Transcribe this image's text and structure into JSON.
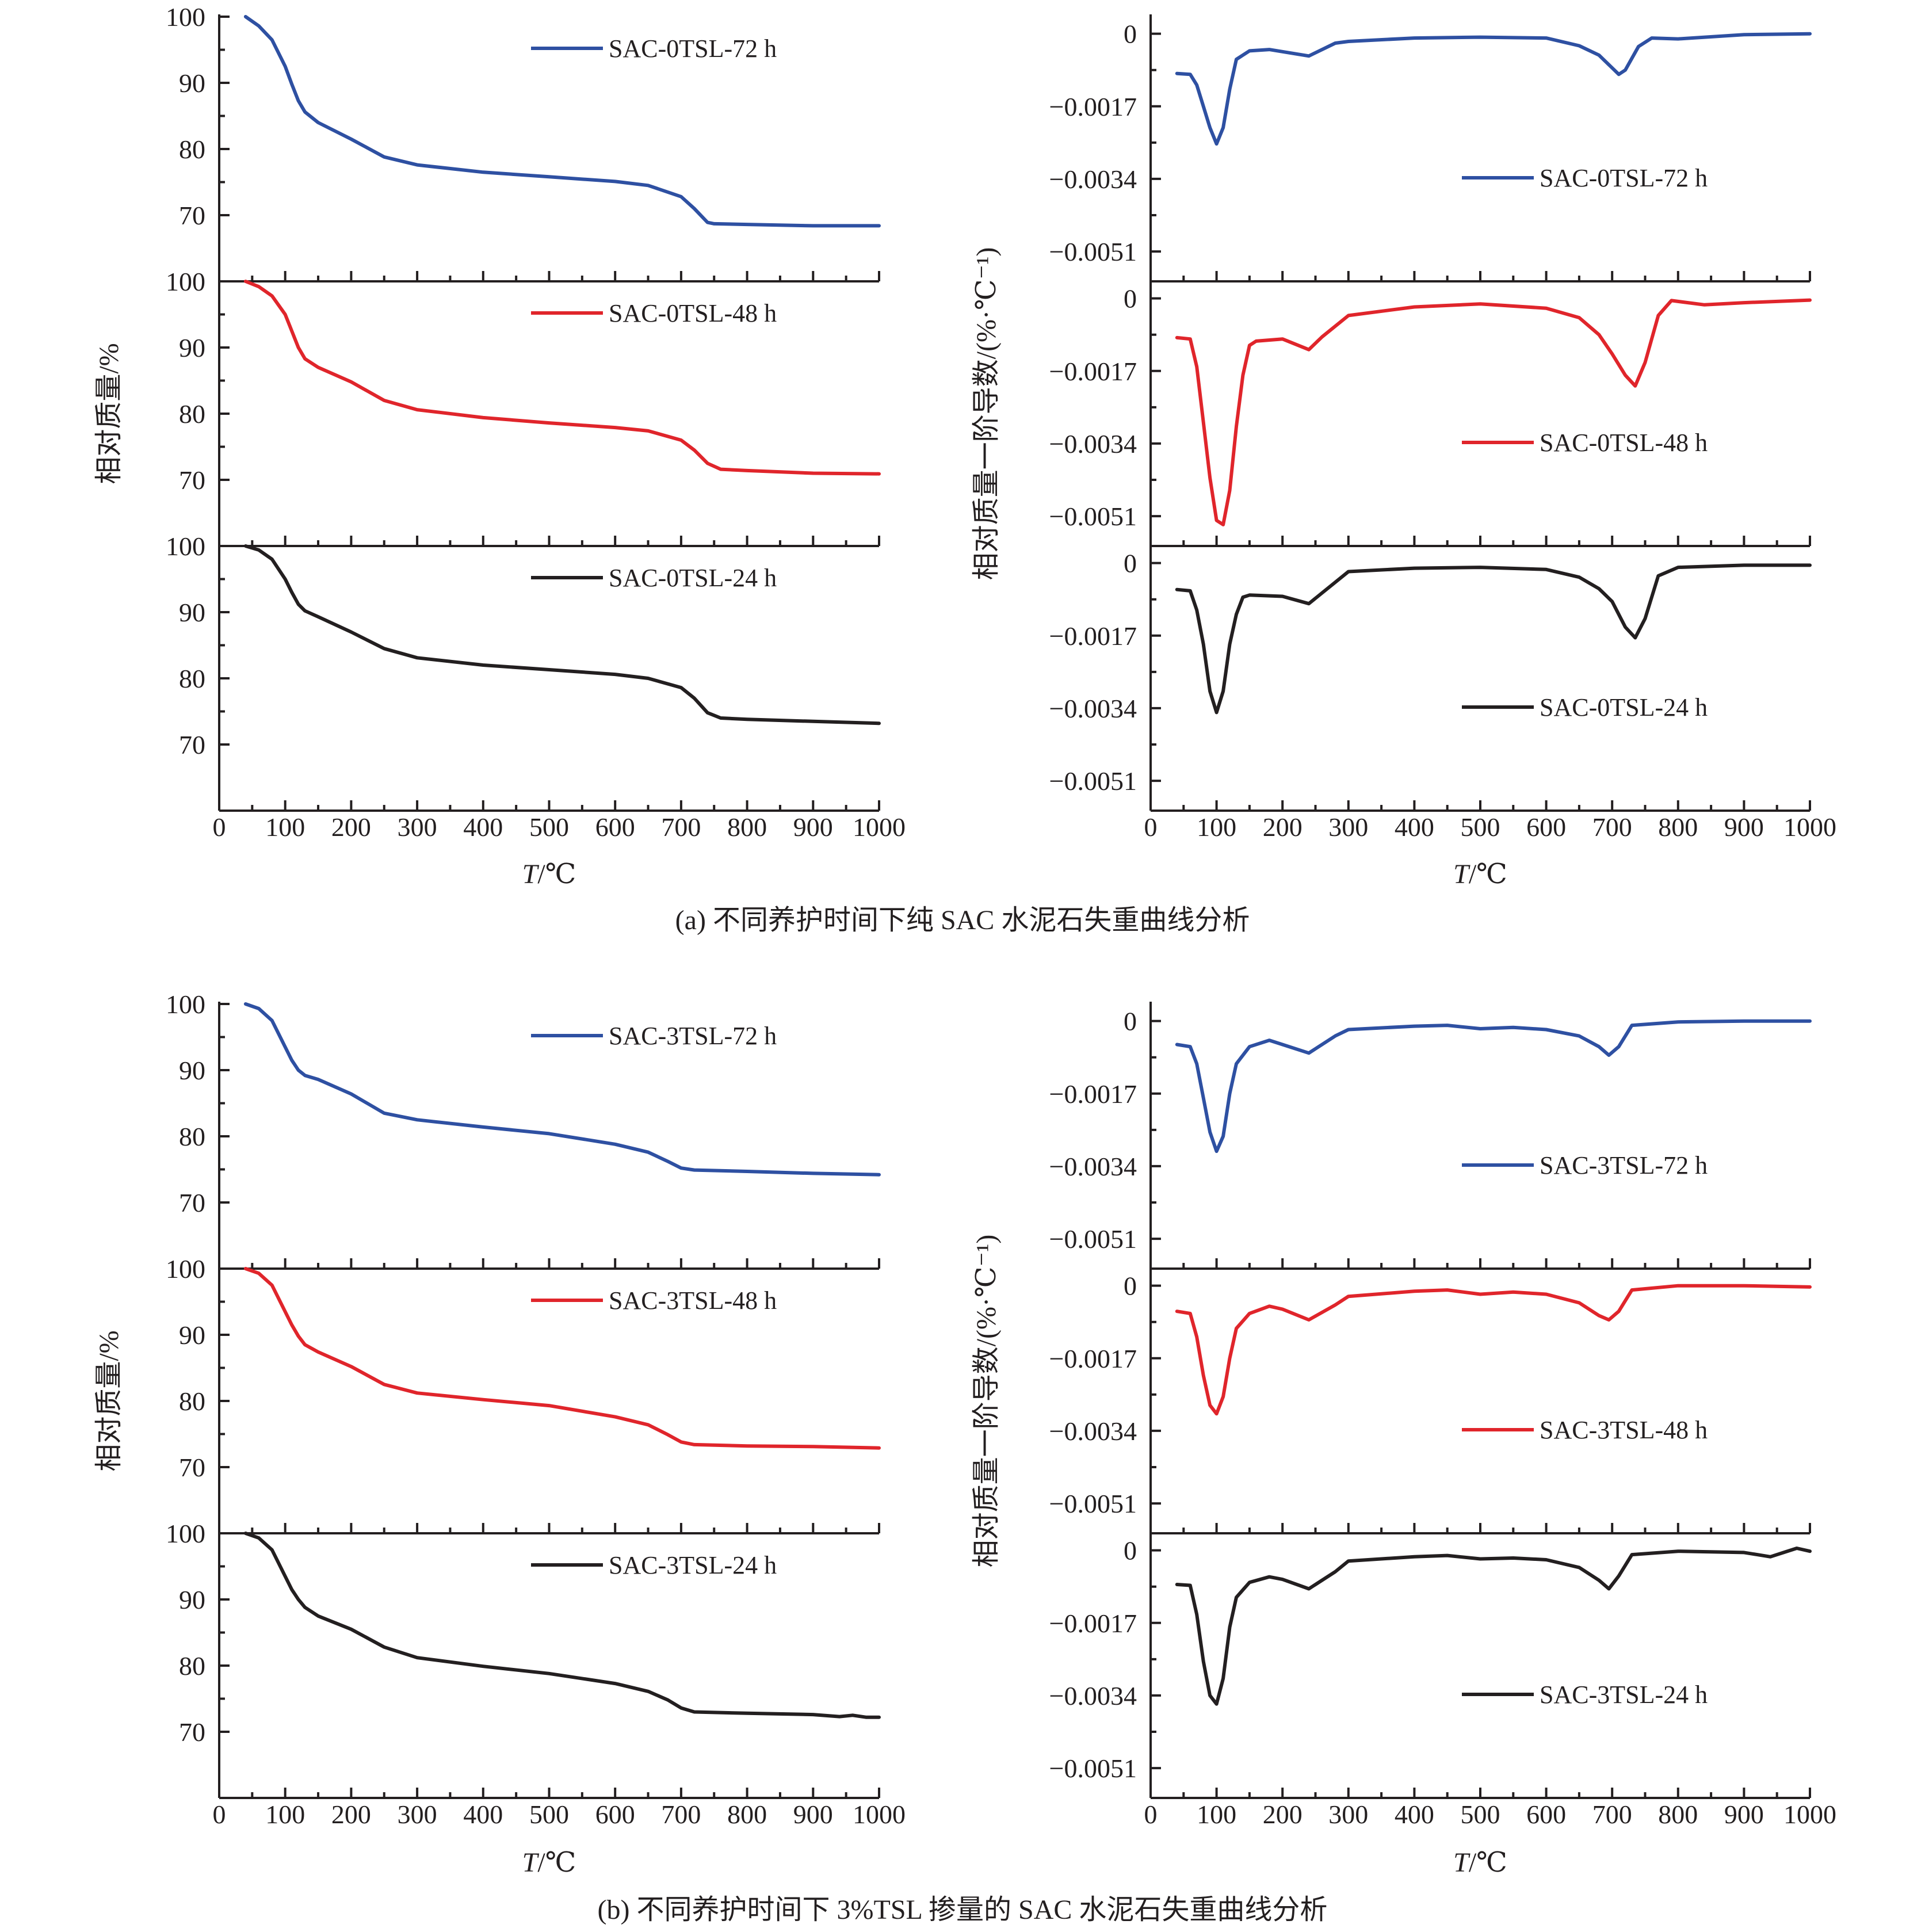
{
  "figure": {
    "caption_a": "(a) 不同养护时间下纯 SAC 水泥石失重曲线分析",
    "caption_b": "(b) 不同养护时间下 3%TSL 掺量的 SAC 水泥石失重曲线分析"
  },
  "chart_data": [
    {
      "type": "line",
      "group": "a",
      "panel": "TG",
      "xlabel_italic": "T",
      "xlabel_unit": "/℃",
      "ylabel": "相对质量/%",
      "xlim": [
        0,
        1000
      ],
      "xticks": [
        "0",
        "100",
        "200",
        "300",
        "400",
        "500",
        "600",
        "700",
        "800",
        "900",
        "1000"
      ],
      "ylim": [
        60,
        100
      ],
      "yticks": [
        70,
        80,
        90,
        100
      ],
      "ytick_labels": [
        "70",
        "80",
        "90",
        "100"
      ],
      "subplots": [
        {
          "name": "SAC-0TSL-72 h",
          "color": "#2e50a2",
          "legend": "top-right",
          "x": [
            40,
            60,
            80,
            100,
            110,
            120,
            130,
            150,
            200,
            250,
            300,
            400,
            500,
            600,
            650,
            700,
            720,
            740,
            750,
            800,
            900,
            1000
          ],
          "y": [
            100,
            98.6,
            96.5,
            92.5,
            89.8,
            87.3,
            85.6,
            84,
            81.5,
            78.8,
            77.6,
            76.5,
            75.8,
            75.1,
            74.5,
            72.8,
            71,
            68.9,
            68.7,
            68.6,
            68.4,
            68.4
          ]
        },
        {
          "name": "SAC-0TSL-48 h",
          "color": "#e0252b",
          "legend": "top-right",
          "x": [
            40,
            60,
            80,
            100,
            110,
            120,
            130,
            150,
            200,
            250,
            300,
            400,
            500,
            600,
            650,
            700,
            720,
            740,
            760,
            800,
            900,
            1000
          ],
          "y": [
            100,
            99.2,
            97.8,
            95,
            92.5,
            90,
            88.3,
            87,
            84.8,
            82,
            80.6,
            79.4,
            78.6,
            77.9,
            77.4,
            76,
            74.5,
            72.5,
            71.6,
            71.4,
            71,
            70.9
          ]
        },
        {
          "name": "SAC-0TSL-24 h",
          "color": "#231f20",
          "legend": "top-right",
          "x": [
            40,
            60,
            80,
            100,
            110,
            120,
            130,
            150,
            200,
            250,
            300,
            400,
            500,
            600,
            650,
            700,
            720,
            740,
            760,
            800,
            900,
            1000
          ],
          "y": [
            100,
            99.4,
            98,
            95,
            93,
            91.2,
            90.2,
            89.3,
            87,
            84.5,
            83.1,
            82,
            81.3,
            80.6,
            80,
            78.6,
            77,
            74.8,
            74,
            73.8,
            73.5,
            73.2
          ]
        }
      ]
    },
    {
      "type": "line",
      "group": "a",
      "panel": "DTG",
      "xlabel_italic": "T",
      "xlabel_unit": "/℃",
      "ylabel": "相对质量一阶导数/(%·℃⁻¹)",
      "xlim": [
        0,
        1000
      ],
      "xticks": [
        "0",
        "100",
        "200",
        "300",
        "400",
        "500",
        "600",
        "700",
        "800",
        "900",
        "1000"
      ],
      "ylim": [
        -0.0058,
        0.0004
      ],
      "yticks": [
        0,
        -0.0017,
        -0.0034,
        -0.0051
      ],
      "ytick_labels": [
        "0",
        "−0.0017",
        "−0.0034",
        "−0.0051"
      ],
      "subplots": [
        {
          "name": "SAC-0TSL-72 h",
          "color": "#2e50a2",
          "legend": "bottom-right",
          "x": [
            40,
            60,
            70,
            80,
            90,
            100,
            110,
            120,
            130,
            150,
            180,
            200,
            240,
            280,
            300,
            400,
            500,
            600,
            650,
            680,
            700,
            710,
            720,
            740,
            760,
            800,
            900,
            1000
          ],
          "y": [
            -0.00093,
            -0.00095,
            -0.0012,
            -0.0017,
            -0.0022,
            -0.00258,
            -0.0022,
            -0.0013,
            -0.0006,
            -0.0004,
            -0.00037,
            -0.00042,
            -0.00052,
            -0.00022,
            -0.00018,
            -0.0001,
            -8e-05,
            -0.0001,
            -0.00028,
            -0.0005,
            -0.0008,
            -0.00095,
            -0.00085,
            -0.0003,
            -0.0001,
            -0.00012,
            -2e-05,
            0
          ]
        },
        {
          "name": "SAC-0TSL-48 h",
          "color": "#e0252b",
          "legend": "bottom-right",
          "x": [
            40,
            60,
            70,
            80,
            90,
            100,
            110,
            120,
            130,
            140,
            150,
            160,
            200,
            240,
            260,
            300,
            400,
            500,
            600,
            650,
            680,
            700,
            720,
            735,
            750,
            770,
            790,
            840,
            900,
            1000
          ],
          "y": [
            -0.00092,
            -0.00095,
            -0.0016,
            -0.0029,
            -0.0042,
            -0.0052,
            -0.0053,
            -0.0045,
            -0.003,
            -0.0018,
            -0.0011,
            -0.001,
            -0.00095,
            -0.0012,
            -0.0009,
            -0.0004,
            -0.0002,
            -0.00013,
            -0.00023,
            -0.00045,
            -0.00085,
            -0.0013,
            -0.0018,
            -0.00205,
            -0.0015,
            -0.0004,
            -5e-05,
            -0.00015,
            -0.0001,
            -4e-05
          ]
        },
        {
          "name": "SAC-0TSL-24 h",
          "color": "#231f20",
          "legend": "bottom-right",
          "x": [
            40,
            60,
            70,
            80,
            90,
            100,
            110,
            120,
            130,
            140,
            150,
            200,
            240,
            260,
            300,
            400,
            500,
            600,
            650,
            680,
            700,
            720,
            735,
            750,
            770,
            800,
            840,
            900,
            1000
          ],
          "y": [
            -0.00062,
            -0.00065,
            -0.0011,
            -0.0019,
            -0.003,
            -0.0035,
            -0.003,
            -0.0019,
            -0.0012,
            -0.0008,
            -0.00075,
            -0.00078,
            -0.00095,
            -0.0007,
            -0.0002,
            -0.00012,
            -0.0001,
            -0.00015,
            -0.00033,
            -0.0006,
            -0.0009,
            -0.0015,
            -0.00175,
            -0.0013,
            -0.0003,
            -0.0001,
            -8e-05,
            -5e-05,
            -5e-05
          ]
        }
      ]
    },
    {
      "type": "line",
      "group": "b",
      "panel": "TG",
      "xlabel_italic": "T",
      "xlabel_unit": "/℃",
      "ylabel": "相对质量/%",
      "xlim": [
        0,
        1000
      ],
      "xticks": [
        "0",
        "100",
        "200",
        "300",
        "400",
        "500",
        "600",
        "700",
        "800",
        "900",
        "1000"
      ],
      "ylim": [
        60,
        100
      ],
      "yticks": [
        70,
        80,
        90,
        100
      ],
      "ytick_labels": [
        "70",
        "80",
        "90",
        "100"
      ],
      "subplots": [
        {
          "name": "SAC-3TSL-72 h",
          "color": "#2e50a2",
          "legend": "top-right",
          "x": [
            40,
            60,
            80,
            100,
            110,
            120,
            130,
            150,
            200,
            250,
            300,
            400,
            500,
            600,
            650,
            680,
            700,
            720,
            800,
            900,
            1000
          ],
          "y": [
            100,
            99.3,
            97.5,
            93.5,
            91.5,
            90,
            89.2,
            88.6,
            86.4,
            83.5,
            82.5,
            81.4,
            80.4,
            78.8,
            77.6,
            76.2,
            75.2,
            74.9,
            74.7,
            74.4,
            74.2
          ]
        },
        {
          "name": "SAC-3TSL-48 h",
          "color": "#e0252b",
          "legend": "top-right",
          "x": [
            40,
            60,
            80,
            100,
            110,
            120,
            130,
            150,
            200,
            250,
            300,
            400,
            500,
            600,
            650,
            680,
            700,
            720,
            800,
            900,
            1000
          ],
          "y": [
            100,
            99.3,
            97.5,
            93.5,
            91.5,
            89.8,
            88.5,
            87.4,
            85.2,
            82.5,
            81.2,
            80.2,
            79.3,
            77.6,
            76.4,
            74.9,
            73.8,
            73.4,
            73.2,
            73.1,
            72.9
          ]
        },
        {
          "name": "SAC-3TSL-24 h",
          "color": "#231f20",
          "legend": "top-right",
          "x": [
            40,
            60,
            80,
            100,
            110,
            120,
            130,
            150,
            200,
            250,
            300,
            400,
            500,
            600,
            650,
            680,
            700,
            720,
            800,
            900,
            940,
            960,
            980,
            1000
          ],
          "y": [
            100,
            99.3,
            97.5,
            93.5,
            91.5,
            90,
            88.8,
            87.5,
            85.5,
            82.8,
            81.2,
            79.9,
            78.8,
            77.3,
            76.1,
            74.8,
            73.6,
            73,
            72.8,
            72.6,
            72.3,
            72.5,
            72.2,
            72.2
          ]
        }
      ]
    },
    {
      "type": "line",
      "group": "b",
      "panel": "DTG",
      "xlabel_italic": "T",
      "xlabel_unit": "/℃",
      "ylabel": "相对质量一阶导数/(%·℃⁻¹)",
      "xlim": [
        0,
        1000
      ],
      "xticks": [
        "0",
        "100",
        "200",
        "300",
        "400",
        "500",
        "600",
        "700",
        "800",
        "900",
        "1000"
      ],
      "ylim": [
        -0.0058,
        0.0004
      ],
      "yticks": [
        0,
        -0.0017,
        -0.0034,
        -0.0051
      ],
      "ytick_labels": [
        "0",
        "−0.0017",
        "−0.0034",
        "−0.0051"
      ],
      "subplots": [
        {
          "name": "SAC-3TSL-72 h",
          "color": "#2e50a2",
          "legend": "bottom-right",
          "x": [
            40,
            60,
            70,
            80,
            90,
            100,
            110,
            120,
            130,
            150,
            180,
            200,
            240,
            280,
            300,
            400,
            450,
            500,
            550,
            600,
            650,
            680,
            695,
            710,
            730,
            800,
            900,
            1000
          ],
          "y": [
            -0.00055,
            -0.0006,
            -0.001,
            -0.0018,
            -0.0026,
            -0.00305,
            -0.0027,
            -0.0017,
            -0.001,
            -0.0006,
            -0.00045,
            -0.00055,
            -0.00075,
            -0.00035,
            -0.0002,
            -0.00012,
            -0.0001,
            -0.00018,
            -0.00015,
            -0.0002,
            -0.00035,
            -0.0006,
            -0.0008,
            -0.0006,
            -0.0001,
            -2e-05,
            0,
            0
          ]
        },
        {
          "name": "SAC-3TSL-48 h",
          "color": "#e0252b",
          "legend": "bottom-right",
          "x": [
            40,
            60,
            70,
            80,
            90,
            100,
            110,
            120,
            130,
            150,
            180,
            200,
            240,
            280,
            300,
            400,
            450,
            500,
            550,
            600,
            650,
            680,
            695,
            710,
            730,
            800,
            900,
            1000
          ],
          "y": [
            -0.0006,
            -0.00065,
            -0.0012,
            -0.0021,
            -0.0028,
            -0.003,
            -0.0026,
            -0.0017,
            -0.001,
            -0.00065,
            -0.00048,
            -0.00055,
            -0.0008,
            -0.00045,
            -0.00025,
            -0.00013,
            -0.0001,
            -0.0002,
            -0.00015,
            -0.0002,
            -0.0004,
            -0.0007,
            -0.0008,
            -0.0006,
            -0.0001,
            0,
            0,
            -3e-05
          ]
        },
        {
          "name": "SAC-3TSL-24 h",
          "color": "#231f20",
          "legend": "bottom-right",
          "x": [
            40,
            60,
            70,
            80,
            90,
            100,
            110,
            120,
            130,
            150,
            180,
            200,
            240,
            280,
            300,
            400,
            450,
            500,
            550,
            600,
            650,
            680,
            695,
            710,
            730,
            800,
            900,
            920,
            940,
            960,
            980,
            1000
          ],
          "y": [
            -0.0008,
            -0.00082,
            -0.0015,
            -0.0026,
            -0.0034,
            -0.0036,
            -0.003,
            -0.0018,
            -0.0011,
            -0.00075,
            -0.00062,
            -0.00068,
            -0.0009,
            -0.0005,
            -0.00025,
            -0.00015,
            -0.00012,
            -0.0002,
            -0.00018,
            -0.00022,
            -0.0004,
            -0.0007,
            -0.0009,
            -0.0006,
            -0.0001,
            -2e-05,
            -5e-05,
            -0.0001,
            -0.00015,
            -5e-05,
            5e-05,
            -2e-05
          ]
        }
      ]
    }
  ]
}
